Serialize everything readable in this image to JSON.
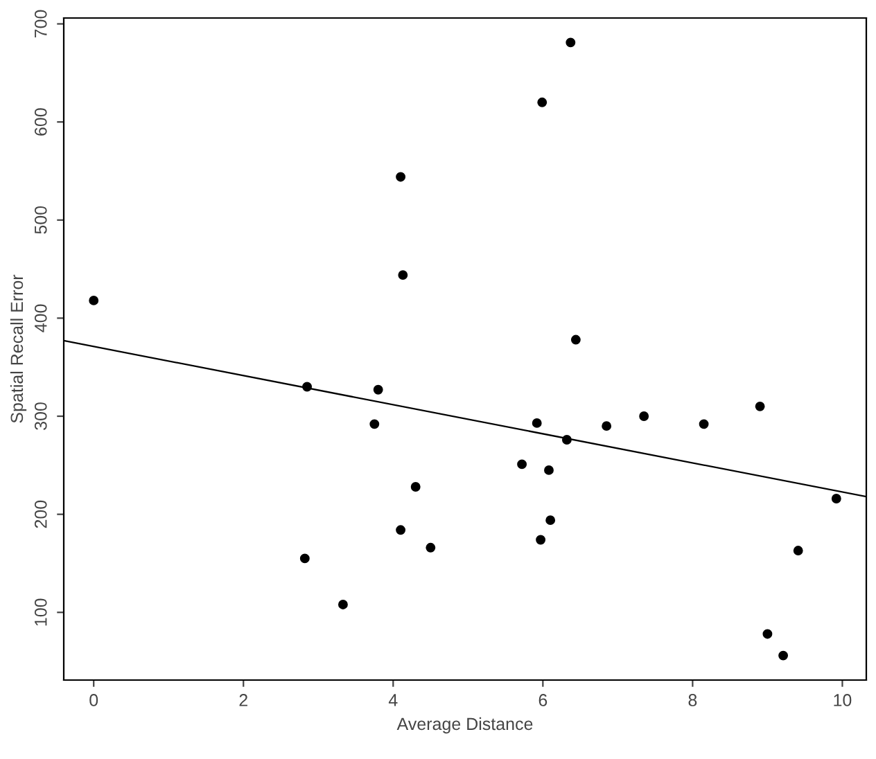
{
  "chart_data": {
    "type": "scatter",
    "xlabel": "Average Distance",
    "ylabel": "Spatial Recall Error",
    "xlim": [
      -0.4,
      10.32
    ],
    "ylim": [
      31,
      706
    ],
    "xticks": [
      0,
      2,
      4,
      6,
      8,
      10
    ],
    "yticks": [
      100,
      200,
      300,
      400,
      500,
      600,
      700
    ],
    "grid": false,
    "legend": false,
    "marker": "circle",
    "series": [
      {
        "color": "#000000",
        "x": [
          0,
          2.85,
          2.82,
          3.33,
          3.75,
          3.8,
          4.1,
          4.13,
          4.1,
          4.3,
          4.5,
          6.37,
          5.99,
          6.44,
          8.9,
          5.92,
          6.85,
          7.35,
          8.15,
          6.32,
          5.72,
          6.08,
          9.92,
          6.1,
          5.97,
          9.41,
          9.0,
          9.21
        ],
        "values": [
          418,
          330,
          155,
          108,
          292,
          327,
          544,
          444,
          184,
          228,
          166,
          681,
          620,
          378,
          310,
          293,
          290,
          300,
          292,
          276,
          251,
          245,
          216,
          194,
          174,
          163,
          78,
          56
        ]
      },
      {
        "type": "line",
        "color": "#000000",
        "x": [
          -0.4,
          10.32
        ],
        "values": [
          377,
          218
        ],
        "line_style": "solid",
        "marker": "none"
      }
    ]
  }
}
